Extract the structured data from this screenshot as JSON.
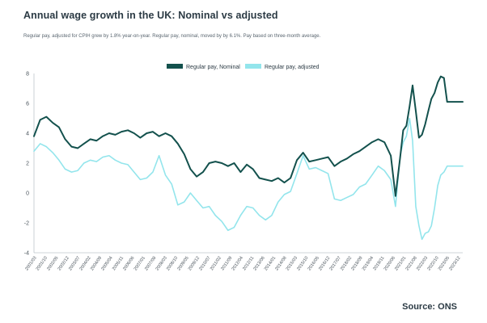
{
  "title": "Annual wage growth in the UK: Nominal vs adjusted",
  "subtitle": "Regular pay, adjusted for CPIH grew by 1.8% year-on-year. Regular pay, nominal, moved by by 6.1%. Pay based on three-month average.",
  "source": "Source: ONS",
  "colors": {
    "nominal": "#13514d",
    "adjusted": "#93e5ec",
    "axis": "#bfc6cc",
    "text": "#2b3a44"
  },
  "chart_data": {
    "type": "line",
    "title": "Annual wage growth in the UK: Nominal vs adjusted",
    "xlabel": "",
    "ylabel": "",
    "ylim": [
      -4,
      8
    ],
    "yticks": [
      -4,
      -2,
      0,
      2,
      4,
      6,
      8
    ],
    "grid": false,
    "legend_position": "top-center",
    "x_tick_labels": [
      "2001/03",
      "2001/10",
      "2002/05",
      "2002/12",
      "2003/07",
      "2004/02",
      "2004/09",
      "2005/04",
      "2005/11",
      "2006/06",
      "2007/01",
      "2007/08",
      "2008/03",
      "2008/10",
      "2009/05",
      "2009/12",
      "2010/07",
      "2011/02",
      "2011/09",
      "2012/04",
      "2012/11",
      "2013/06",
      "2014/01",
      "2014/08",
      "2015/03",
      "2015/10",
      "2016/05",
      "2016/12",
      "2017/07",
      "2018/02",
      "2018/09",
      "2019/04",
      "2019/11",
      "2020/06",
      "2021/01",
      "2021/08",
      "2022/03",
      "2022/10",
      "2023/05",
      "2023/12"
    ],
    "x": [
      2001.17,
      2001.5,
      2001.83,
      2002.17,
      2002.5,
      2002.83,
      2003.17,
      2003.5,
      2003.83,
      2004.17,
      2004.5,
      2004.83,
      2005.17,
      2005.5,
      2005.83,
      2006.17,
      2006.5,
      2006.83,
      2007.17,
      2007.5,
      2007.83,
      2008.17,
      2008.5,
      2008.83,
      2009.17,
      2009.5,
      2009.83,
      2010.17,
      2010.5,
      2010.83,
      2011.17,
      2011.5,
      2011.83,
      2012.17,
      2012.5,
      2012.83,
      2013.17,
      2013.5,
      2013.83,
      2014.17,
      2014.5,
      2014.83,
      2015.17,
      2015.5,
      2015.83,
      2016.17,
      2016.5,
      2016.83,
      2017.17,
      2017.5,
      2017.83,
      2018.17,
      2018.5,
      2018.83,
      2019.17,
      2019.5,
      2019.83,
      2020.17,
      2020.42,
      2020.67,
      2020.83,
      2021.0,
      2021.17,
      2021.33,
      2021.5,
      2021.67,
      2021.83,
      2022.0,
      2022.17,
      2022.33,
      2022.5,
      2022.67,
      2022.83,
      2023.0,
      2023.17,
      2023.33,
      2023.5,
      2023.67,
      2023.83,
      2024.0
    ],
    "series": [
      {
        "name": "Regular pay, Nominal",
        "values": [
          3.8,
          4.9,
          5.1,
          4.7,
          4.4,
          3.6,
          3.1,
          3.0,
          3.3,
          3.6,
          3.5,
          3.8,
          4.0,
          3.9,
          4.1,
          4.2,
          4.0,
          3.7,
          4.0,
          4.1,
          3.8,
          4.0,
          3.8,
          3.3,
          2.6,
          1.6,
          1.1,
          1.4,
          2.0,
          2.1,
          2.0,
          1.8,
          2.0,
          1.4,
          1.9,
          1.6,
          1.0,
          0.9,
          0.8,
          1.0,
          0.7,
          1.0,
          2.2,
          2.7,
          2.1,
          2.2,
          2.3,
          2.4,
          1.8,
          2.1,
          2.3,
          2.6,
          2.8,
          3.1,
          3.4,
          3.6,
          3.4,
          2.5,
          -0.2,
          2.4,
          4.2,
          4.5,
          5.8,
          7.2,
          5.5,
          3.7,
          3.9,
          4.6,
          5.5,
          6.3,
          6.7,
          7.4,
          7.8,
          7.7,
          6.1,
          6.1,
          6.1,
          6.1,
          6.1,
          6.1
        ]
      },
      {
        "name": "Regular pay, adjusted",
        "values": [
          2.8,
          3.3,
          3.1,
          2.7,
          2.2,
          1.6,
          1.4,
          1.5,
          2.0,
          2.2,
          2.1,
          2.4,
          2.5,
          2.2,
          2.0,
          1.9,
          1.4,
          0.9,
          1.0,
          1.4,
          2.5,
          1.2,
          0.6,
          -0.8,
          -0.6,
          0.0,
          -0.5,
          -1.0,
          -0.9,
          -1.5,
          -1.9,
          -2.5,
          -2.3,
          -1.5,
          -0.9,
          -1.0,
          -1.5,
          -1.8,
          -1.5,
          -0.6,
          -0.1,
          0.1,
          1.3,
          2.5,
          1.6,
          1.7,
          1.5,
          1.3,
          -0.4,
          -0.5,
          -0.3,
          -0.1,
          0.4,
          0.6,
          1.2,
          1.8,
          1.5,
          0.9,
          -0.9,
          2.5,
          3.4,
          3.8,
          5.0,
          3.5,
          -0.9,
          -2.2,
          -3.1,
          -2.7,
          -2.6,
          -2.2,
          -1.0,
          0.5,
          1.2,
          1.4,
          1.8,
          1.8,
          1.8,
          1.8,
          1.8,
          1.8
        ]
      }
    ]
  }
}
